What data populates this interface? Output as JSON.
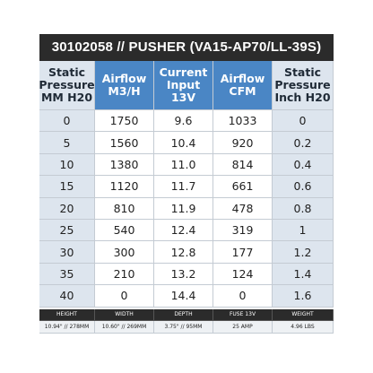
{
  "title": "30102058 // PUSHER (VA15-AP70/LL-39S)",
  "table": {
    "headers": [
      [
        "Static",
        "Pressure",
        "MM H20"
      ],
      [
        "Airflow",
        "M3/H"
      ],
      [
        "Current",
        "Input",
        "13V"
      ],
      [
        "Airflow",
        "CFM"
      ],
      [
        "Static",
        "Pressure",
        "Inch H20"
      ]
    ],
    "rows": [
      [
        "0",
        "1750",
        "9.6",
        "1033",
        "0"
      ],
      [
        "5",
        "1560",
        "10.4",
        "920",
        "0.2"
      ],
      [
        "10",
        "1380",
        "11.0",
        "814",
        "0.4"
      ],
      [
        "15",
        "1120",
        "11.7",
        "661",
        "0.6"
      ],
      [
        "20",
        "810",
        "11.9",
        "478",
        "0.8"
      ],
      [
        "25",
        "540",
        "12.4",
        "319",
        "1"
      ],
      [
        "30",
        "300",
        "12.8",
        "177",
        "1.2"
      ],
      [
        "35",
        "210",
        "13.2",
        "124",
        "1.4"
      ],
      [
        "40",
        "0",
        "14.4",
        "0",
        "1.6"
      ]
    ]
  },
  "specs": {
    "labels": [
      "HEIGHT",
      "WIDTH",
      "DEPTH",
      "FUSE 13V",
      "WEIGHT"
    ],
    "values": [
      "10.94\" // 278MM",
      "10.60\" // 269MM",
      "3.75\" // 95MM",
      "25 AMP",
      "4.96 LBS"
    ]
  }
}
